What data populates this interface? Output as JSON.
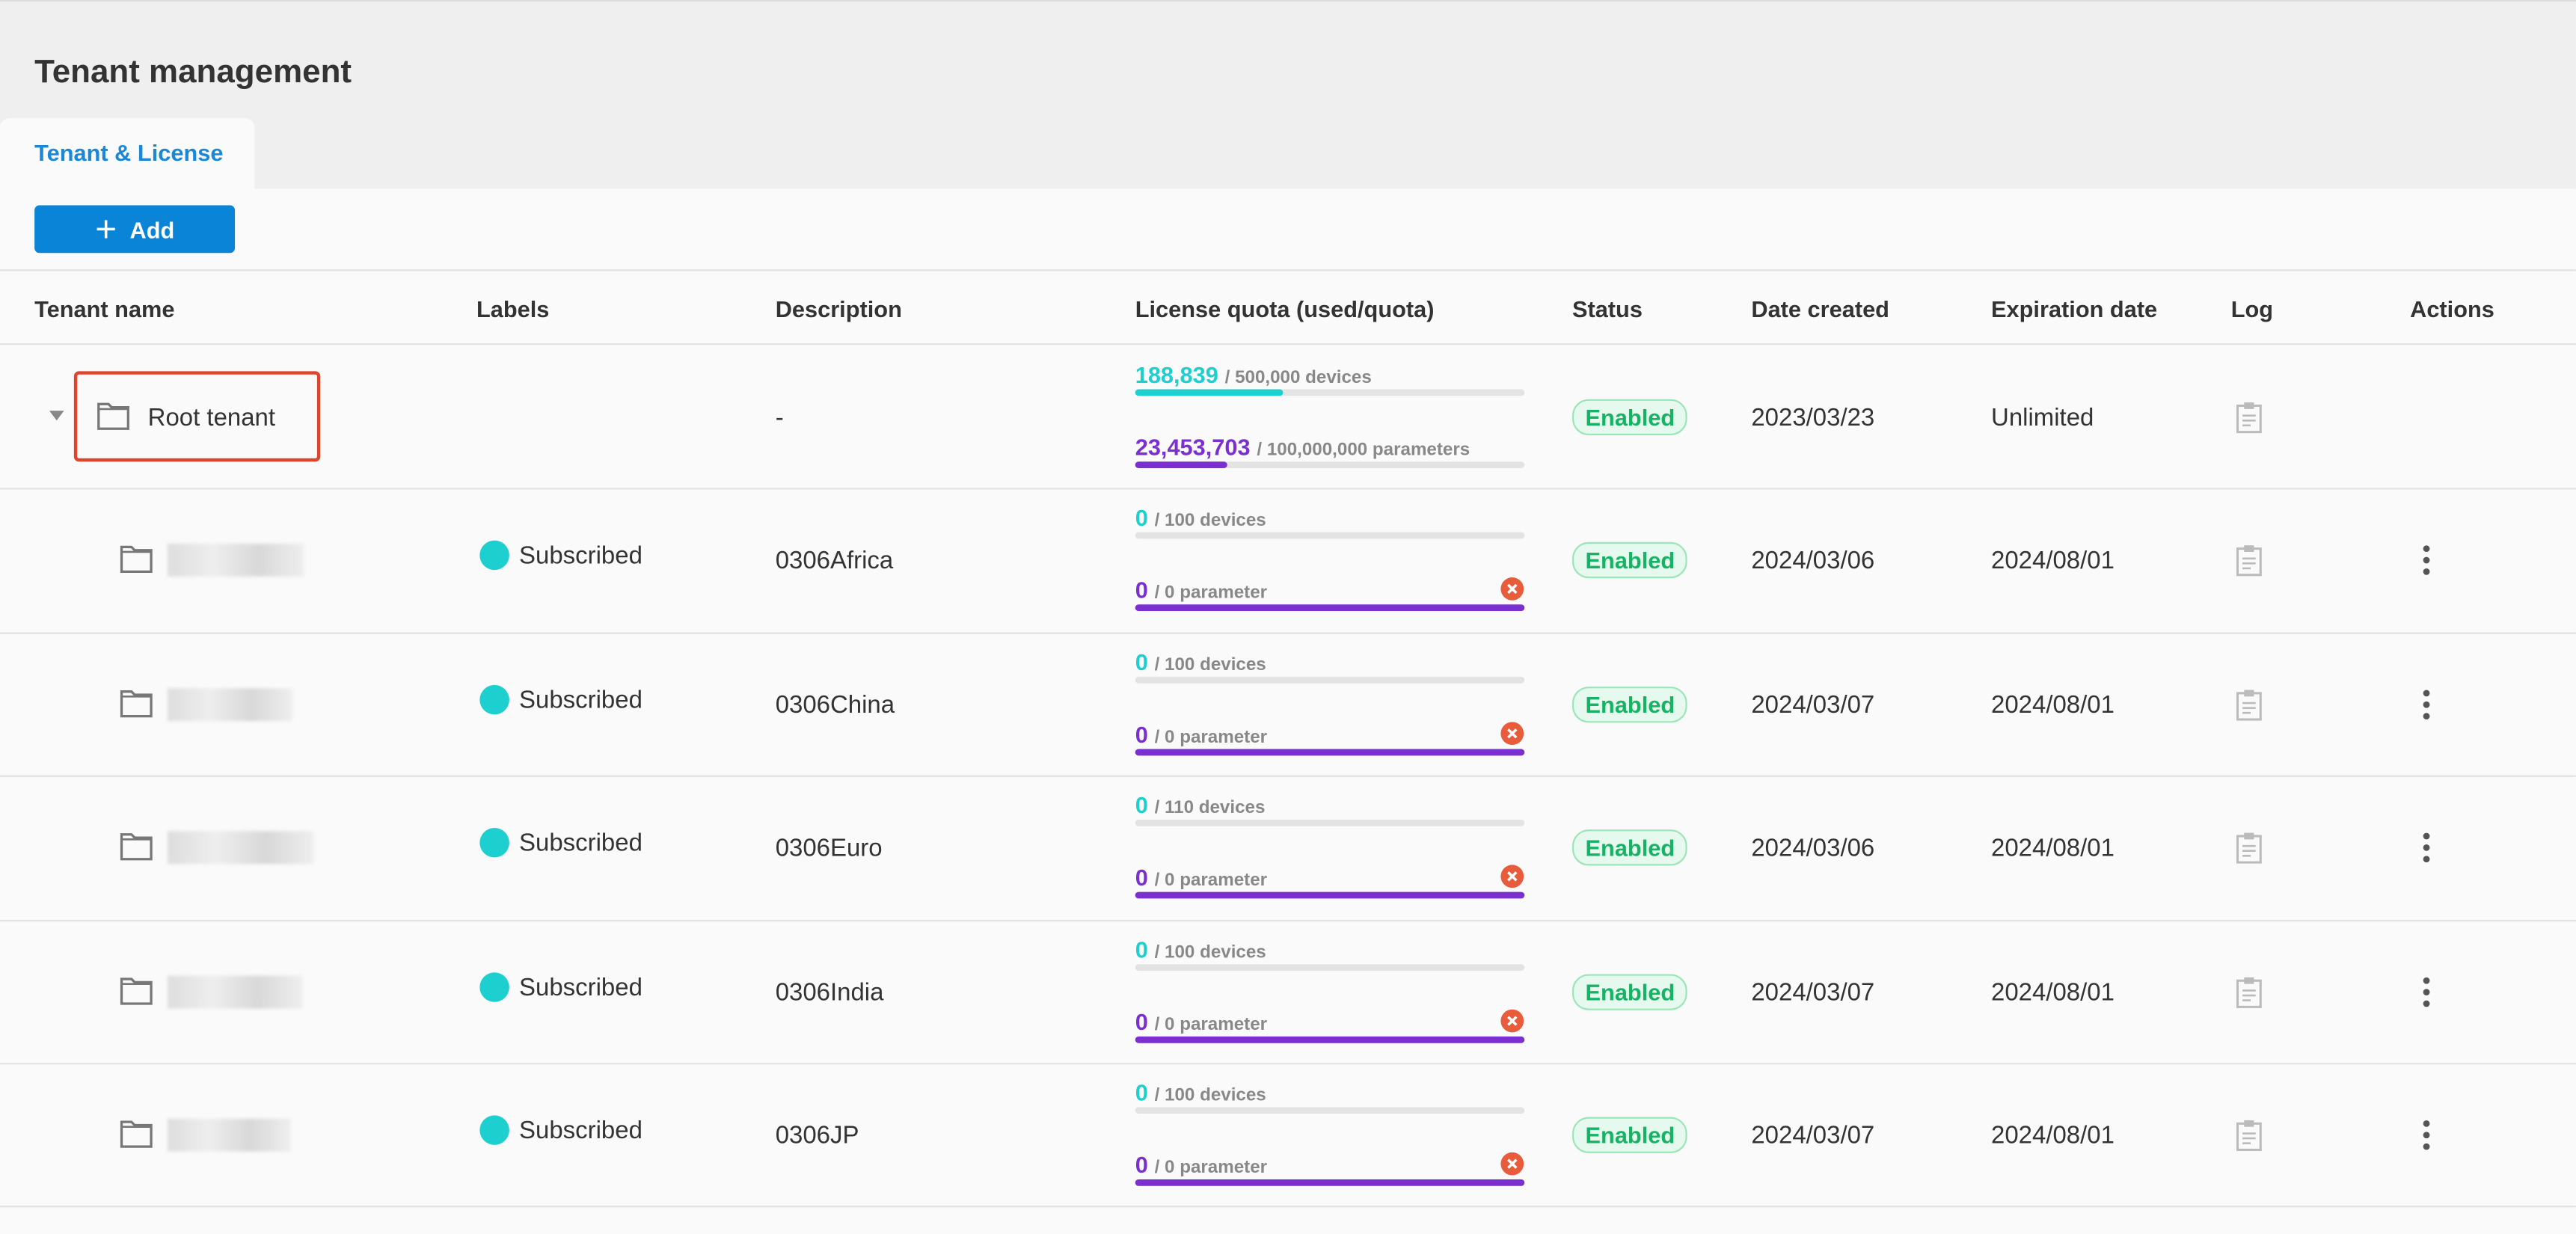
{
  "header": {
    "title": "Tenant management"
  },
  "tabs": [
    "Tenant & License"
  ],
  "toolbar": {
    "add_button": "Add"
  },
  "table": {
    "columns": [
      "Tenant name",
      "Labels",
      "Description",
      "License quota (used/quota)",
      "Status",
      "Date created",
      "Expiration date",
      "Log",
      "Actions"
    ],
    "rows": [
      {
        "name": "Root tenant",
        "label": null,
        "description": "-",
        "devices_used": "188,839",
        "devices_quota": "/ 500,000 devices",
        "params_used": "23,453,703",
        "params_quota": "/ 100,000,000 parameters",
        "status": "Enabled",
        "created": "2023/03/23",
        "expiration": "Unlimited"
      },
      {
        "name": null,
        "label": "Subscribed",
        "description": "0306Africa",
        "devices_used": "0",
        "devices_quota": "/ 100 devices",
        "params_used": "0",
        "params_quota": "/ 0 parameter",
        "status": "Enabled",
        "created": "2024/03/06",
        "expiration": "2024/08/01"
      },
      {
        "name": null,
        "label": "Subscribed",
        "description": "0306China",
        "devices_used": "0",
        "devices_quota": "/ 100 devices",
        "params_used": "0",
        "params_quota": "/ 0 parameter",
        "status": "Enabled",
        "created": "2024/03/07",
        "expiration": "2024/08/01"
      },
      {
        "name": null,
        "label": "Subscribed",
        "description": "0306Euro",
        "devices_used": "0",
        "devices_quota": "/ 110 devices",
        "params_used": "0",
        "params_quota": "/ 0 parameter",
        "status": "Enabled",
        "created": "2024/03/06",
        "expiration": "2024/08/01"
      },
      {
        "name": null,
        "label": "Subscribed",
        "description": "0306India",
        "devices_used": "0",
        "devices_quota": "/ 100 devices",
        "params_used": "0",
        "params_quota": "/ 0 parameter",
        "status": "Enabled",
        "created": "2024/03/07",
        "expiration": "2024/08/01"
      },
      {
        "name": null,
        "label": "Subscribed",
        "description": "0306JP",
        "devices_used": "0",
        "devices_quota": "/ 100 devices",
        "params_used": "0",
        "params_quota": "/ 0 parameter",
        "status": "Enabled",
        "created": "2024/03/07",
        "expiration": "2024/08/01"
      }
    ]
  }
}
